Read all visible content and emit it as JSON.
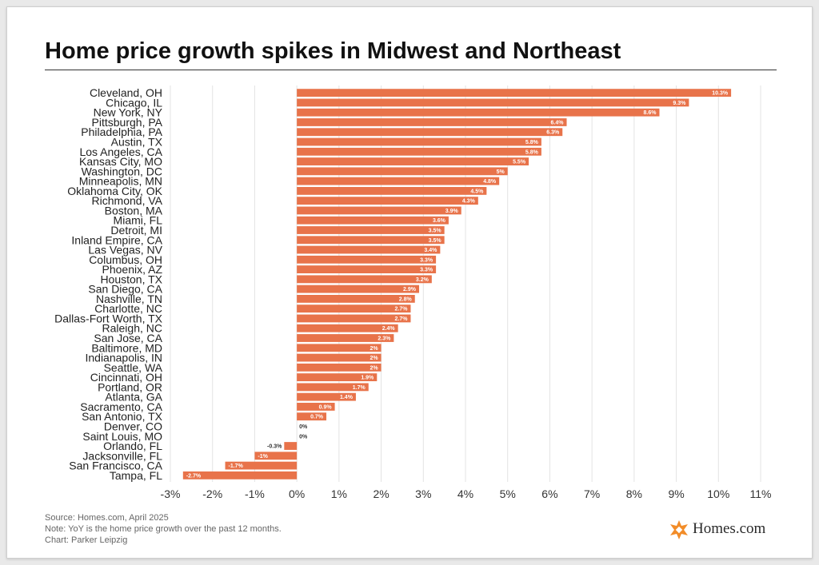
{
  "chart_data": {
    "type": "bar",
    "orientation": "horizontal",
    "title": "Home price growth spikes in Midwest and Northeast",
    "categories": [
      "Cleveland, OH",
      "Chicago, IL",
      "New York, NY",
      "Pittsburgh, PA",
      "Philadelphia, PA",
      "Austin, TX",
      "Los Angeles, CA",
      "Kansas City, MO",
      "Washington, DC",
      "Minneapolis, MN",
      "Oklahoma City, OK",
      "Richmond, VA",
      "Boston, MA",
      "Miami, FL",
      "Detroit, MI",
      "Inland Empire, CA",
      "Las Vegas, NV",
      "Columbus, OH",
      "Phoenix, AZ",
      "Houston, TX",
      "San Diego, CA",
      "Nashville, TN",
      "Charlotte, NC",
      "Dallas-Fort Worth, TX",
      "Raleigh, NC",
      "San Jose, CA",
      "Baltimore, MD",
      "Indianapolis, IN",
      "Seattle, WA",
      "Cincinnati, OH",
      "Portland, OR",
      "Atlanta, GA",
      "Sacramento, CA",
      "San Antonio, TX",
      "Denver, CO",
      "Saint Louis, MO",
      "Orlando, FL",
      "Jacksonville, FL",
      "San Francisco, CA",
      "Tampa, FL"
    ],
    "values": [
      10.3,
      9.3,
      8.6,
      6.4,
      6.3,
      5.8,
      5.8,
      5.5,
      5,
      4.8,
      4.5,
      4.3,
      3.9,
      3.6,
      3.5,
      3.5,
      3.4,
      3.3,
      3.3,
      3.2,
      2.9,
      2.8,
      2.7,
      2.7,
      2.4,
      2.3,
      2,
      2,
      2,
      1.9,
      1.7,
      1.4,
      0.9,
      0.7,
      0,
      0,
      -0.3,
      -1,
      -1.7,
      -2.7
    ],
    "value_labels": [
      "10.3%",
      "9.3%",
      "8.6%",
      "6.4%",
      "6.3%",
      "5.8%",
      "5.8%",
      "5.5%",
      "5%",
      "4.8%",
      "4.5%",
      "4.3%",
      "3.9%",
      "3.6%",
      "3.5%",
      "3.5%",
      "3.4%",
      "3.3%",
      "3.3%",
      "3.2%",
      "2.9%",
      "2.8%",
      "2.7%",
      "2.7%",
      "2.4%",
      "2.3%",
      "2%",
      "2%",
      "2%",
      "1.9%",
      "1.7%",
      "1.4%",
      "0.9%",
      "0.7%",
      "0%",
      "0%",
      "-0.3%",
      "-1%",
      "-1.7%",
      "-2.7%"
    ],
    "xlim": [
      -3,
      11
    ],
    "x_ticks": [
      -3,
      -2,
      -1,
      0,
      1,
      2,
      3,
      4,
      5,
      6,
      7,
      8,
      9,
      10,
      11
    ],
    "x_tick_labels": [
      "-3%",
      "-2%",
      "-1%",
      "0%",
      "1%",
      "2%",
      "3%",
      "4%",
      "5%",
      "6%",
      "7%",
      "8%",
      "9%",
      "10%",
      "11%"
    ],
    "xlabel": "",
    "ylabel": "",
    "grid": true,
    "bar_color": "#e8734a"
  },
  "footer": {
    "source": "Source: Homes.com, April 2025",
    "note": "Note: YoY is the home price growth over the past 12 months.",
    "credit": "Chart: Parker Leipzig"
  },
  "logo": {
    "text": "Homes.com",
    "icon": "homes-com-logo-icon",
    "color": "#f28c28"
  }
}
